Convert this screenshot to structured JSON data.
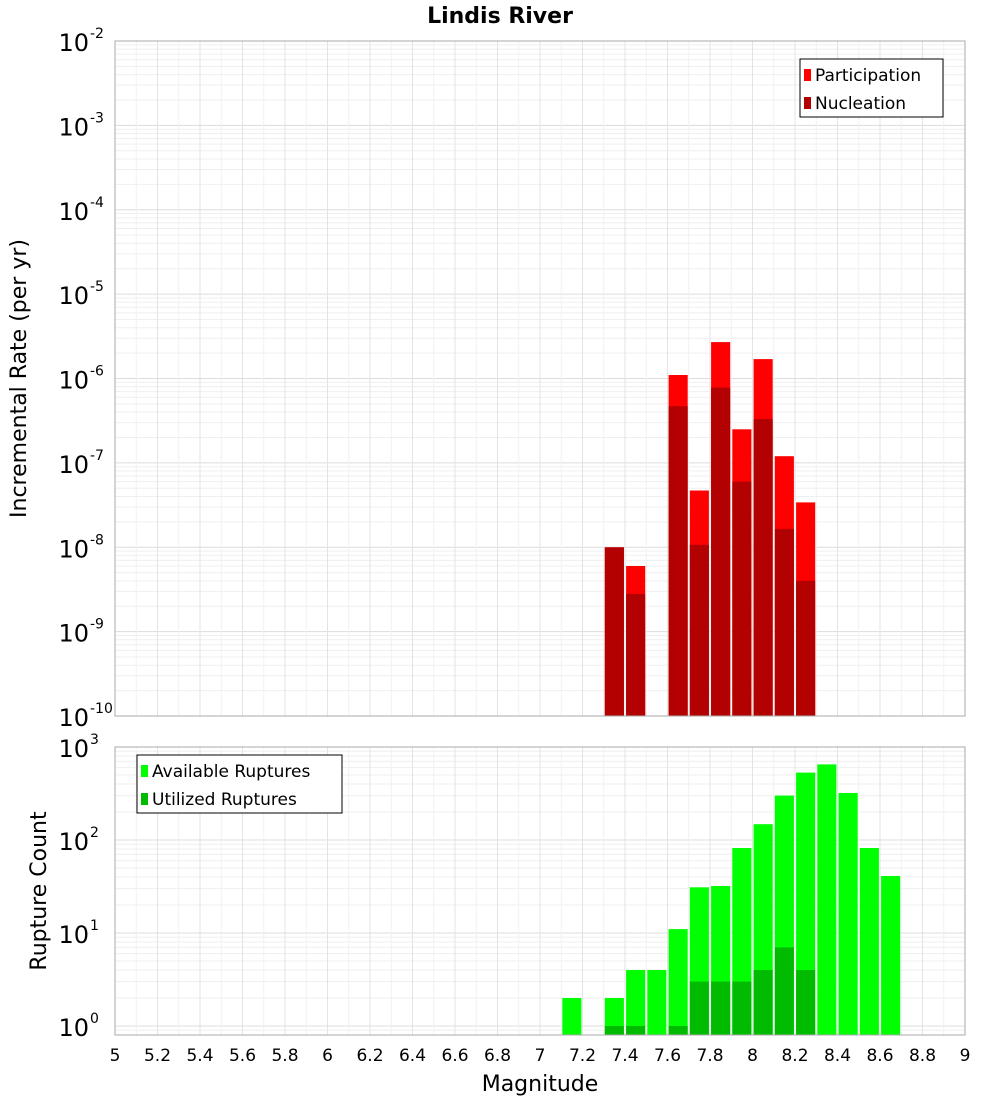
{
  "chart_data": [
    {
      "type": "bar",
      "title": "Lindis River",
      "xlabel": "",
      "ylabel": "Incremental Rate (per yr)",
      "y_scale": "log",
      "ylim": [
        1e-10,
        0.01
      ],
      "xlim": [
        5,
        9
      ],
      "y_ticks": [
        {
          "base": "10",
          "exp": "-2"
        },
        {
          "base": "10",
          "exp": "-3"
        },
        {
          "base": "10",
          "exp": "-4"
        },
        {
          "base": "10",
          "exp": "-5"
        },
        {
          "base": "10",
          "exp": "-6"
        },
        {
          "base": "10",
          "exp": "-7"
        },
        {
          "base": "10",
          "exp": "-8"
        },
        {
          "base": "10",
          "exp": "-9"
        },
        {
          "base": "10",
          "exp": "-10"
        }
      ],
      "grid": true,
      "legend_position": "top-right",
      "series": [
        {
          "name": "Participation",
          "color": "#ff0000",
          "x": [
            7.35,
            7.45,
            7.65,
            7.75,
            7.85,
            7.95,
            8.05,
            8.15,
            8.25
          ],
          "values": [
            1e-08,
            6e-09,
            1.1e-06,
            4.7e-08,
            2.7e-06,
            2.5e-07,
            1.7e-06,
            1.2e-07,
            3.4e-08
          ]
        },
        {
          "name": "Nucleation",
          "color": "#b30000",
          "x": [
            7.35,
            7.45,
            7.65,
            7.75,
            7.85,
            7.95,
            8.05,
            8.15,
            8.25
          ],
          "values": [
            1e-08,
            2.8e-09,
            4.7e-07,
            1.07e-08,
            7.8e-07,
            6e-08,
            3.3e-07,
            1.65e-08,
            4e-09
          ]
        }
      ]
    },
    {
      "type": "bar",
      "title": "",
      "xlabel": "Magnitude",
      "ylabel": "Rupture Count",
      "y_scale": "log",
      "ylim": [
        0.8,
        1000
      ],
      "xlim": [
        5,
        9
      ],
      "x_ticks": [
        "5",
        "5.2",
        "5.4",
        "5.6",
        "5.8",
        "6",
        "6.2",
        "6.4",
        "6.6",
        "6.8",
        "7",
        "7.2",
        "7.4",
        "7.6",
        "7.8",
        "8",
        "8.2",
        "8.4",
        "8.6",
        "8.8",
        "9"
      ],
      "y_ticks": [
        {
          "base": "10",
          "exp": "3"
        },
        {
          "base": "10",
          "exp": "2"
        },
        {
          "base": "10",
          "exp": "1"
        },
        {
          "base": "10",
          "exp": "0"
        }
      ],
      "grid": true,
      "legend_position": "top-left",
      "series": [
        {
          "name": "Available Ruptures",
          "color": "#00ff00",
          "x": [
            7.15,
            7.35,
            7.45,
            7.55,
            7.65,
            7.75,
            7.85,
            7.95,
            8.05,
            8.15,
            8.25,
            8.35,
            8.45,
            8.55,
            8.65
          ],
          "values": [
            2,
            2,
            4,
            4,
            11,
            31,
            32,
            82,
            148,
            300,
            530,
            650,
            320,
            82,
            41
          ]
        },
        {
          "name": "Utilized Ruptures",
          "color": "#00bb00",
          "x": [
            7.35,
            7.45,
            7.65,
            7.75,
            7.85,
            7.95,
            8.05,
            8.15,
            8.25
          ],
          "values": [
            1,
            1,
            1,
            3,
            3,
            3,
            4,
            7,
            4
          ]
        }
      ]
    }
  ]
}
